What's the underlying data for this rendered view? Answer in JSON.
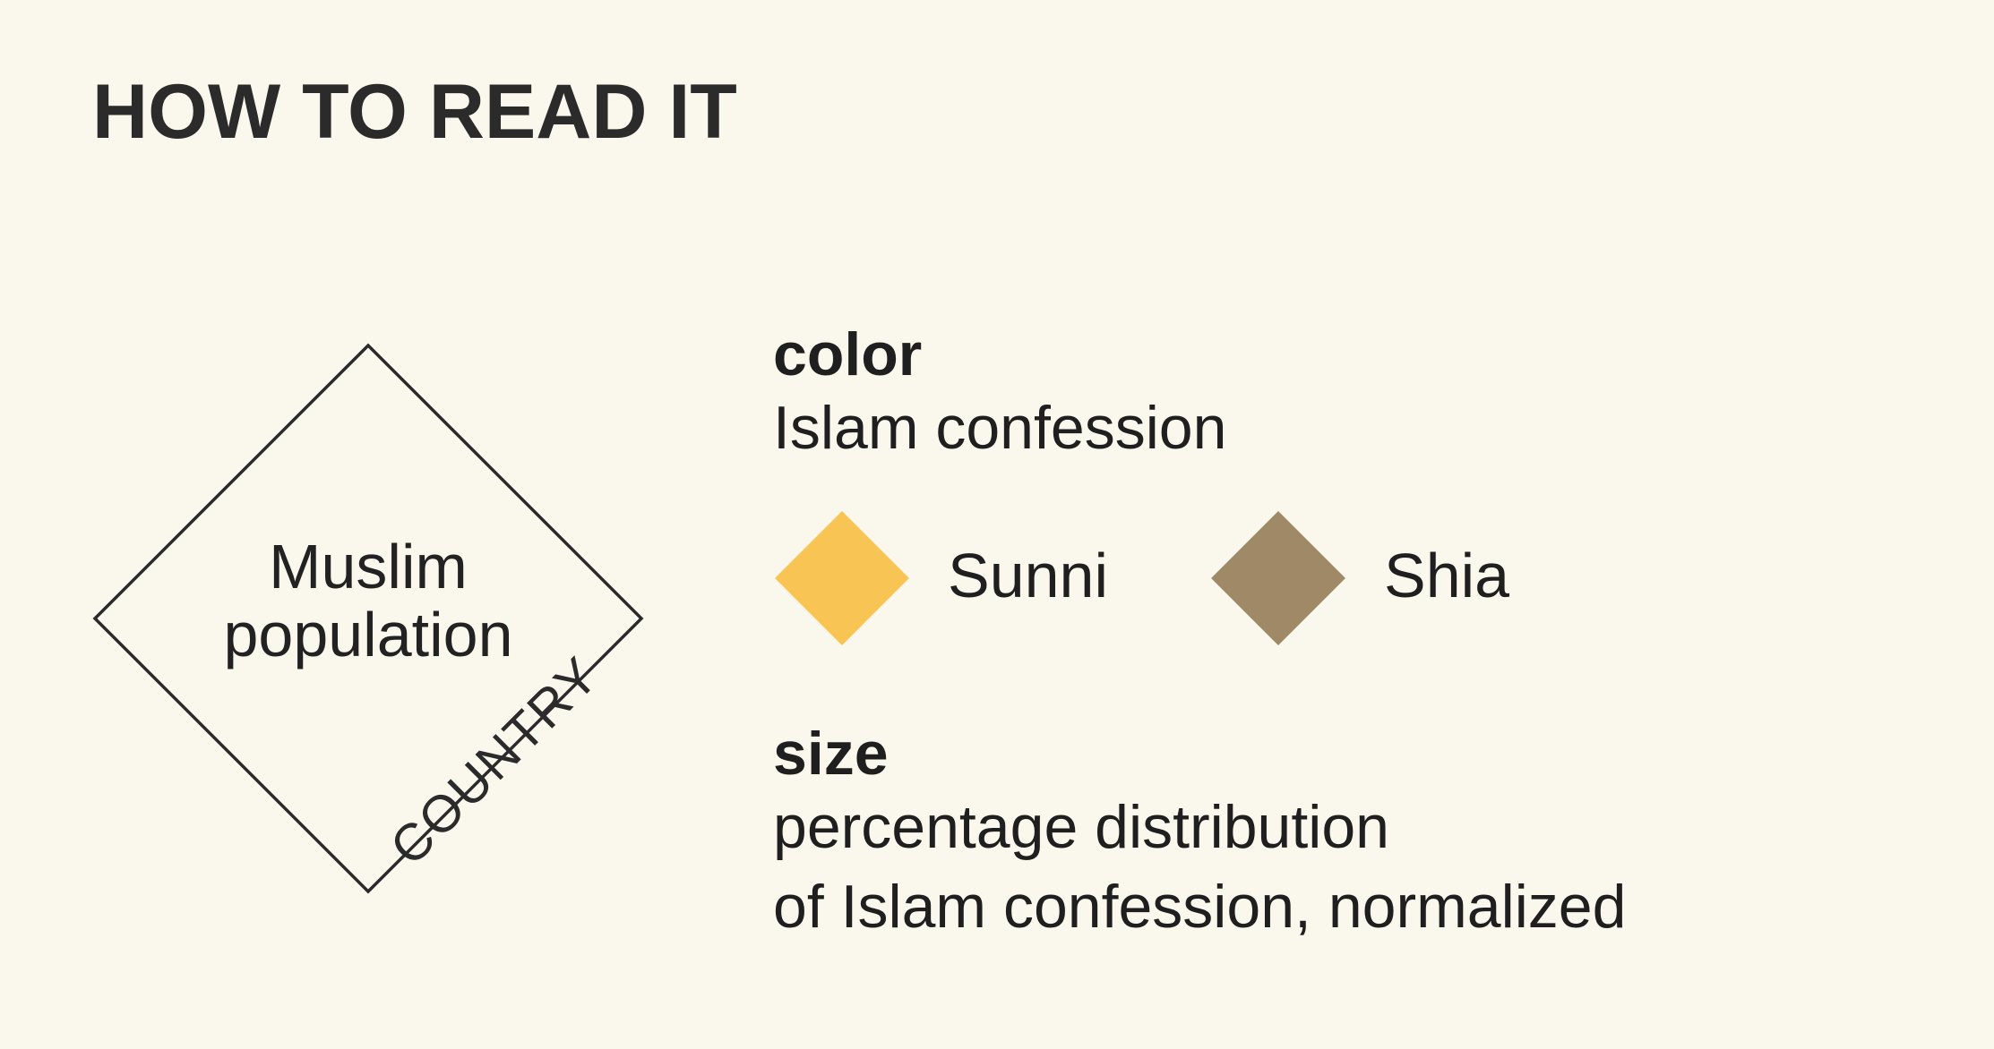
{
  "title": "HOW TO READ IT",
  "diagram": {
    "center_line_1": "Muslim",
    "center_line_2": "population",
    "edge_label": "COUNTRY"
  },
  "color_section": {
    "heading": "color",
    "description": "Islam confession",
    "legend": [
      {
        "label": "Sunni",
        "color": "#f8c453"
      },
      {
        "label": "Shia",
        "color": "#a08966"
      }
    ]
  },
  "size_section": {
    "heading": "size",
    "description_line_1": "percentage distribution",
    "description_line_2": "of Islam confession, normalized"
  }
}
